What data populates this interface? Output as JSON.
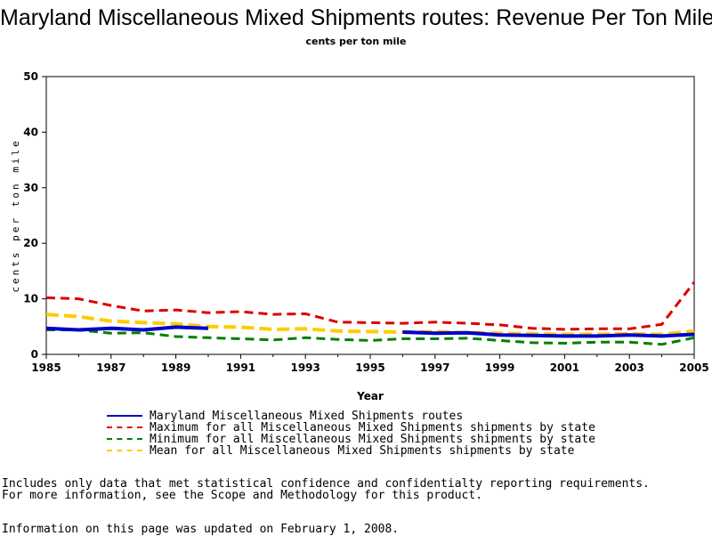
{
  "title": "Maryland Miscellaneous Mixed Shipments routes: Revenue Per Ton Mile",
  "subtitle": "cents per ton mile",
  "notes": {
    "line1": "Includes only data that met statistical confidence and confidentialty reporting requirements.",
    "line2": "For more information, see the Scope and Methodology for this product.",
    "updated": "Information on this page was updated on February 1, 2008."
  },
  "chart_data": {
    "type": "line",
    "title": "Maryland Miscellaneous Mixed Shipments routes: Revenue Per Ton Mile",
    "subtitle": "cents per ton mile",
    "xlabel": "Year",
    "ylabel": "cents per ton mile",
    "xlim": [
      1985,
      2005
    ],
    "ylim": [
      0,
      50
    ],
    "x_ticks": [
      1985,
      1987,
      1989,
      1991,
      1993,
      1995,
      1997,
      1999,
      2001,
      2003,
      2005
    ],
    "y_ticks": [
      0,
      10,
      20,
      30,
      40,
      50
    ],
    "grid": false,
    "legend_position": "bottom",
    "series": [
      {
        "name": "Maryland Miscellaneous Mixed Shipments routes",
        "color": "#0000cc",
        "style": "solid",
        "segments": [
          [
            [
              1985,
              4.7
            ],
            [
              1986,
              4.4
            ],
            [
              1987,
              4.7
            ],
            [
              1988,
              4.4
            ],
            [
              1989,
              4.9
            ],
            [
              1990,
              4.7
            ]
          ],
          [
            [
              1996,
              4.0
            ],
            [
              1997,
              3.8
            ],
            [
              1998,
              3.9
            ],
            [
              1999,
              3.5
            ],
            [
              2000,
              3.4
            ],
            [
              2001,
              3.3
            ],
            [
              2002,
              3.3
            ],
            [
              2003,
              3.5
            ],
            [
              2004,
              3.3
            ],
            [
              2005,
              3.6
            ]
          ]
        ]
      },
      {
        "name": "Maximum for all Miscellaneous Mixed Shipments shipments by state",
        "color": "#dd0000",
        "style": "dashed",
        "segments": [
          [
            [
              1985,
              10.2
            ],
            [
              1986,
              10.0
            ],
            [
              1987,
              8.8
            ],
            [
              1988,
              7.8
            ],
            [
              1989,
              8.0
            ],
            [
              1990,
              7.5
            ],
            [
              1991,
              7.7
            ],
            [
              1992,
              7.2
            ],
            [
              1993,
              7.3
            ],
            [
              1994,
              5.8
            ],
            [
              1995,
              5.7
            ],
            [
              1996,
              5.6
            ],
            [
              1997,
              5.8
            ],
            [
              1998,
              5.6
            ],
            [
              1999,
              5.3
            ],
            [
              2000,
              4.7
            ],
            [
              2001,
              4.5
            ],
            [
              2002,
              4.6
            ],
            [
              2003,
              4.6
            ],
            [
              2004,
              5.4
            ],
            [
              2005,
              13.0
            ]
          ]
        ]
      },
      {
        "name": "Minimum for all Miscellaneous Mixed Shipments shipments by state",
        "color": "#008000",
        "style": "dashed",
        "segments": [
          [
            [
              1985,
              4.4
            ],
            [
              1986,
              4.4
            ],
            [
              1987,
              3.8
            ],
            [
              1988,
              3.9
            ],
            [
              1989,
              3.2
            ],
            [
              1990,
              3.0
            ],
            [
              1991,
              2.8
            ],
            [
              1992,
              2.6
            ],
            [
              1993,
              3.0
            ],
            [
              1994,
              2.7
            ],
            [
              1995,
              2.5
            ],
            [
              1996,
              2.8
            ],
            [
              1997,
              2.8
            ],
            [
              1998,
              2.9
            ],
            [
              1999,
              2.5
            ],
            [
              2000,
              2.1
            ],
            [
              2001,
              2.0
            ],
            [
              2002,
              2.2
            ],
            [
              2003,
              2.2
            ],
            [
              2004,
              1.8
            ],
            [
              2005,
              3.0
            ]
          ]
        ]
      },
      {
        "name": "Mean for all Miscellaneous Mixed Shipments shipments by state",
        "color": "#ffcc00",
        "style": "dashed",
        "segments": [
          [
            [
              1985,
              7.2
            ],
            [
              1986,
              6.8
            ],
            [
              1987,
              6.0
            ],
            [
              1988,
              5.7
            ],
            [
              1989,
              5.5
            ],
            [
              1990,
              5.0
            ],
            [
              1991,
              4.9
            ],
            [
              1992,
              4.5
            ],
            [
              1993,
              4.6
            ],
            [
              1994,
              4.2
            ],
            [
              1995,
              4.1
            ],
            [
              1996,
              4.0
            ],
            [
              1997,
              4.1
            ],
            [
              1998,
              3.9
            ],
            [
              1999,
              3.8
            ],
            [
              2000,
              3.7
            ],
            [
              2001,
              3.6
            ],
            [
              2002,
              3.6
            ],
            [
              2003,
              3.7
            ],
            [
              2004,
              3.6
            ],
            [
              2005,
              4.2
            ]
          ]
        ]
      }
    ]
  }
}
